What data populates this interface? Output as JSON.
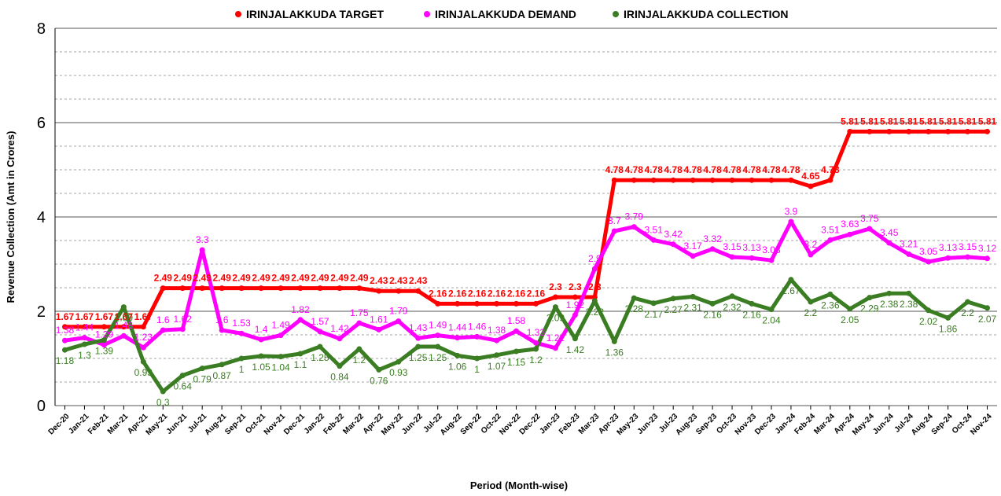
{
  "chart_data": {
    "type": "line",
    "xlabel": "Period (Month-wise)",
    "ylabel": "Revenue Collection (Amt in Crores)",
    "categories": [
      "Dec-20",
      "Jan-21",
      "Feb-21",
      "Mar-21",
      "Apr-21",
      "May-21",
      "Jun-21",
      "Jul-21",
      "Aug-21",
      "Sep-21",
      "Oct-21",
      "Nov-21",
      "Dec-21",
      "Jan-22",
      "Feb-22",
      "Mar-22",
      "Apr-22",
      "May-22",
      "Jun-22",
      "Jul-22",
      "Aug-22",
      "Sep-22",
      "Oct-22",
      "Nov-22",
      "Dec-22",
      "Jan-23",
      "Feb-23",
      "Mar-23",
      "Apr-23",
      "May-23",
      "Jun-23",
      "Jul-23",
      "Aug-23",
      "Sep-23",
      "Oct-23",
      "Nov-23",
      "Dec-23",
      "Jan-24",
      "Feb-24",
      "Mar-24",
      "Apr-24",
      "May-24",
      "Jun-24",
      "Jul-24",
      "Aug-24",
      "Sep-24",
      "Oct-24",
      "Nov-24"
    ],
    "series": [
      {
        "name": "IRINJALAKKUDA TARGET",
        "color": "#ff0000",
        "values": [
          1.67,
          1.67,
          1.67,
          1.67,
          1.67,
          2.49,
          2.49,
          2.49,
          2.49,
          2.49,
          2.49,
          2.49,
          2.49,
          2.49,
          2.49,
          2.49,
          2.43,
          2.43,
          2.43,
          2.16,
          2.16,
          2.16,
          2.16,
          2.16,
          2.16,
          2.3,
          2.3,
          2.3,
          4.78,
          4.78,
          4.78,
          4.78,
          4.78,
          4.78,
          4.78,
          4.78,
          4.78,
          4.78,
          4.65,
          4.78,
          5.81,
          5.81,
          5.81,
          5.81,
          5.81,
          5.81,
          5.81,
          5.81
        ]
      },
      {
        "name": "IRINJALAKKUDA DEMAND",
        "color": "#ff00ff",
        "values": [
          1.38,
          1.44,
          1.29,
          1.48,
          1.23,
          1.6,
          1.62,
          3.3,
          1.6,
          1.53,
          1.4,
          1.49,
          1.82,
          1.57,
          1.42,
          1.75,
          1.61,
          1.79,
          1.43,
          1.49,
          1.44,
          1.46,
          1.38,
          1.58,
          1.33,
          1.22,
          1.92,
          2.9,
          3.7,
          3.79,
          3.51,
          3.42,
          3.17,
          3.32,
          3.15,
          3.13,
          3.08,
          3.9,
          3.2,
          3.51,
          3.63,
          3.75,
          3.45,
          3.21,
          3.05,
          3.13,
          3.15,
          3.12
        ]
      },
      {
        "name": "IRINJALAKKUDA COLLECTION",
        "color": "#3a7d22",
        "values": [
          1.18,
          1.3,
          1.39,
          2.09,
          0.93,
          0.3,
          0.64,
          0.79,
          0.87,
          1,
          1.05,
          1.04,
          1.1,
          1.25,
          0.84,
          1.2,
          0.76,
          0.93,
          1.25,
          1.25,
          1.06,
          1,
          1.07,
          1.15,
          1.2,
          2.09,
          1.42,
          2.22,
          1.36,
          2.28,
          2.17,
          2.27,
          2.31,
          2.16,
          2.32,
          2.16,
          2.04,
          2.67,
          2.2,
          2.36,
          2.05,
          2.29,
          2.38,
          2.38,
          2.02,
          1.86,
          2.2,
          2.07
        ]
      }
    ],
    "ylim": [
      0,
      8
    ],
    "yticks": [
      0,
      2,
      4,
      6,
      8
    ],
    "grid": true
  }
}
